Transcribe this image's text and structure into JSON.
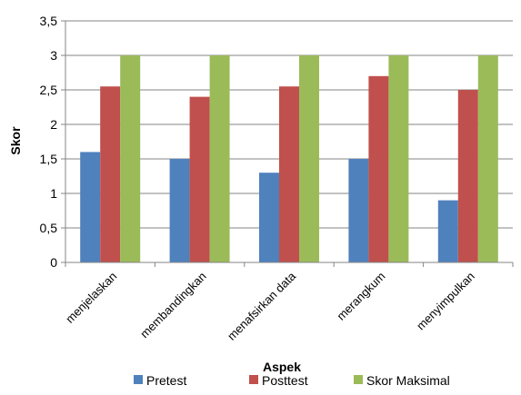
{
  "chart_data": {
    "type": "bar",
    "xlabel": "Aspek",
    "ylabel": "Skor",
    "ylim": [
      0,
      3.5
    ],
    "ytick_step": 0.5,
    "grid": true,
    "legend_position": "bottom",
    "categories": [
      "menjelaskan",
      "membandingkan",
      "menafsirkan data",
      "merangkum",
      "menyimpulkan"
    ],
    "series": [
      {
        "name": "Pretest",
        "color": "#4F81BD",
        "values": [
          1.6,
          1.5,
          1.3,
          1.5,
          0.9
        ]
      },
      {
        "name": "Posttest",
        "color": "#C0504D",
        "values": [
          2.55,
          2.4,
          2.55,
          2.7,
          2.5
        ]
      },
      {
        "name": "Skor Maksimal",
        "color": "#9BBB59",
        "values": [
          3,
          3,
          3,
          3,
          3
        ]
      }
    ],
    "ytick_labels": [
      "0",
      "0,5",
      "1",
      "1,5",
      "2",
      "2,5",
      "3",
      "3,5"
    ]
  }
}
